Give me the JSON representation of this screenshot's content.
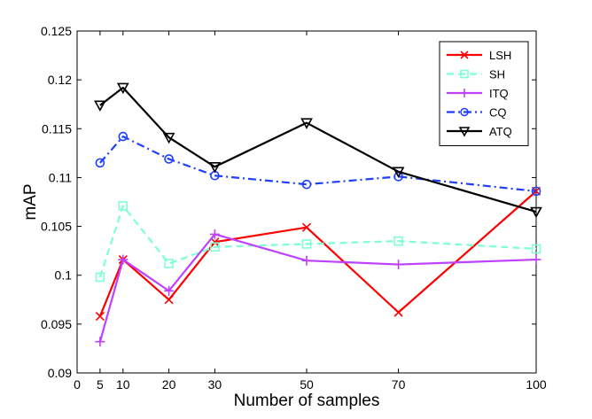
{
  "chart_data": {
    "type": "line",
    "title": "",
    "xlabel": "Number of samples",
    "ylabel": "mAP",
    "xlim": [
      0,
      100
    ],
    "ylim": [
      0.09,
      0.125
    ],
    "xticks": [
      0,
      5,
      10,
      20,
      30,
      50,
      70,
      100
    ],
    "xtick_labels": [
      "0",
      "5",
      "10",
      "20",
      "30",
      "50",
      "70",
      "100"
    ],
    "yticks": [
      0.09,
      0.095,
      0.1,
      0.105,
      0.11,
      0.115,
      0.12,
      0.125
    ],
    "ytick_labels": [
      "0.09",
      "0.095",
      "0.1",
      "0.105",
      "0.11",
      "0.115",
      "0.12",
      "0.125"
    ],
    "grid": false,
    "legend_position": "top-right",
    "x": [
      5,
      10,
      20,
      30,
      50,
      70,
      100
    ],
    "series": [
      {
        "name": "LSH",
        "values": [
          0.0958,
          0.1016,
          0.0975,
          0.1034,
          0.1049,
          0.0962,
          0.1086
        ],
        "color": "#ff0000",
        "line_style": "solid",
        "marker": "x"
      },
      {
        "name": "SH",
        "values": [
          0.0998,
          0.1071,
          0.1012,
          0.1029,
          0.1032,
          0.1035,
          0.1027
        ],
        "color": "#7fffd4",
        "line_style": "dashed",
        "marker": "square"
      },
      {
        "name": "ITQ",
        "values": [
          0.0932,
          0.1016,
          0.0984,
          0.1042,
          0.1015,
          0.1011,
          0.1016
        ],
        "color": "#bf40ff",
        "line_style": "solid",
        "marker": "plus"
      },
      {
        "name": "CQ",
        "values": [
          0.1115,
          0.1142,
          0.1119,
          0.1102,
          0.1093,
          0.1101,
          0.1086
        ],
        "color": "#1f3fff",
        "line_style": "dashdot",
        "marker": "circle"
      },
      {
        "name": "ATQ",
        "values": [
          0.1174,
          0.1192,
          0.1141,
          0.1111,
          0.1156,
          0.1106,
          0.1065
        ],
        "color": "#000000",
        "line_style": "solid",
        "marker": "triangle-down"
      }
    ]
  }
}
